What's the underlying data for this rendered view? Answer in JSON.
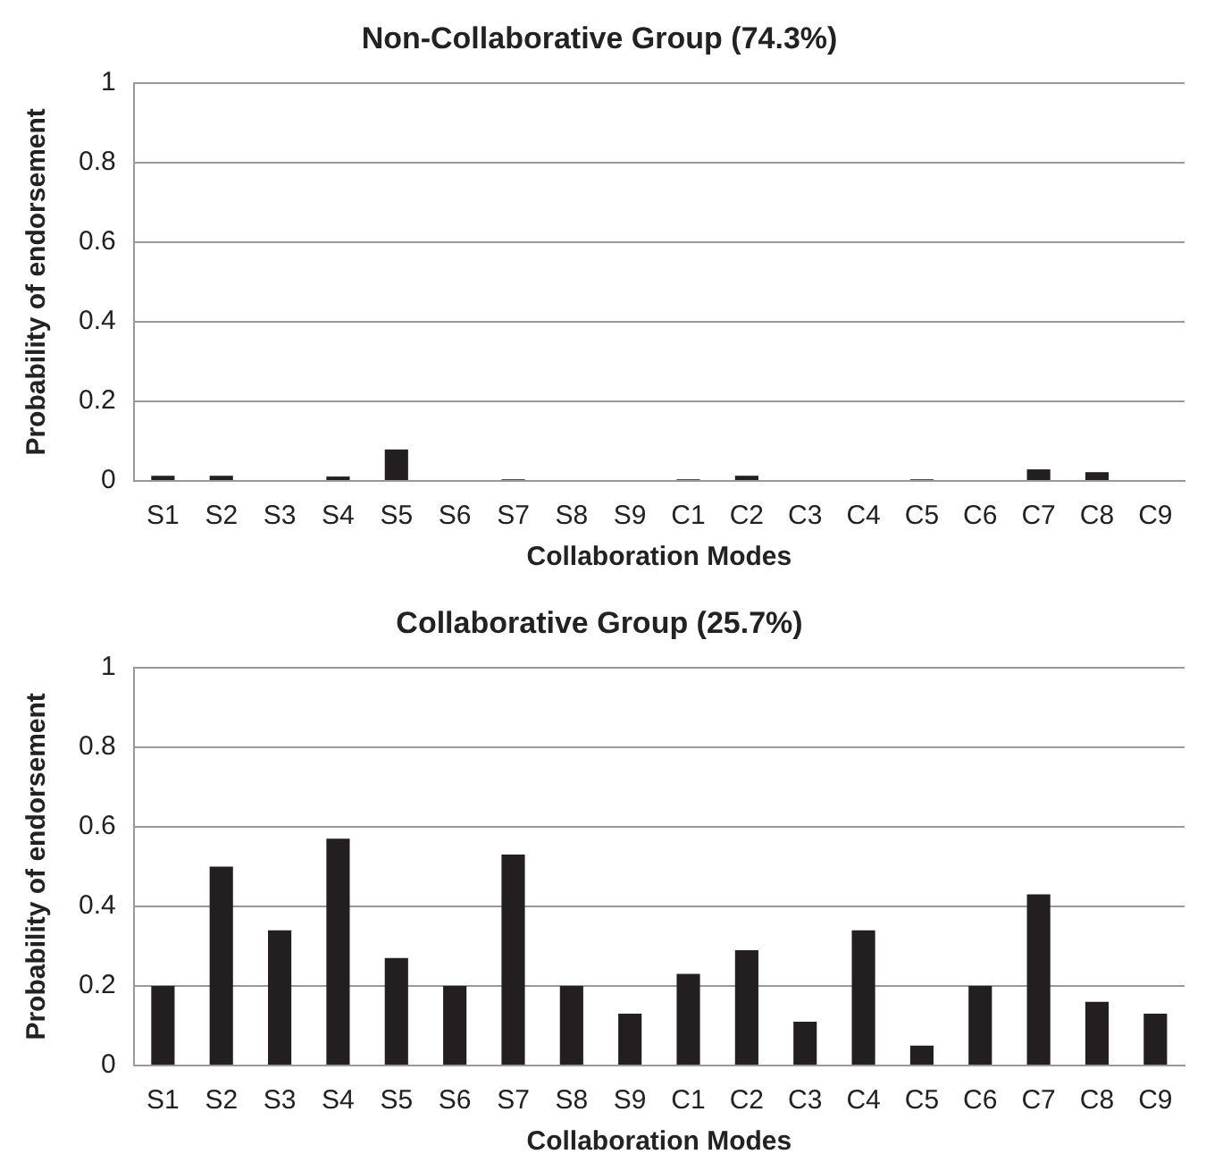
{
  "chart_data": [
    {
      "type": "bar",
      "title": "Non-Collaborative Group (74.3%)",
      "xlabel": "Collaboration Modes",
      "ylabel": "Probability of endorsement",
      "categories": [
        "S1",
        "S2",
        "S3",
        "S4",
        "S5",
        "S6",
        "S7",
        "S8",
        "S9",
        "C1",
        "C2",
        "C3",
        "C4",
        "C5",
        "C6",
        "C7",
        "C8",
        "C9"
      ],
      "values": [
        0.013,
        0.013,
        0,
        0.011,
        0.079,
        0,
        0.004,
        0,
        0,
        0.004,
        0.013,
        0,
        0,
        0.004,
        0,
        0.029,
        0.022,
        0
      ],
      "color": "#231f20",
      "ylim": [
        0,
        1
      ],
      "yticks": [
        0,
        0.2,
        0.4,
        0.6,
        0.8,
        1
      ],
      "grid": "y"
    },
    {
      "type": "bar",
      "title": "Collaborative Group (25.7%)",
      "xlabel": "Collaboration Modes",
      "ylabel": "Probability of endorsement",
      "categories": [
        "S1",
        "S2",
        "S3",
        "S4",
        "S5",
        "S6",
        "S7",
        "S8",
        "S9",
        "C1",
        "C2",
        "C3",
        "C4",
        "C5",
        "C6",
        "C7",
        "C8",
        "C9"
      ],
      "values": [
        0.2,
        0.5,
        0.34,
        0.57,
        0.27,
        0.2,
        0.53,
        0.2,
        0.13,
        0.23,
        0.29,
        0.11,
        0.34,
        0.05,
        0.2,
        0.43,
        0.16,
        0.13
      ],
      "color": "#231f20",
      "ylim": [
        0,
        1
      ],
      "yticks": [
        0,
        0.2,
        0.4,
        0.6,
        0.8,
        1
      ],
      "grid": "y"
    }
  ]
}
